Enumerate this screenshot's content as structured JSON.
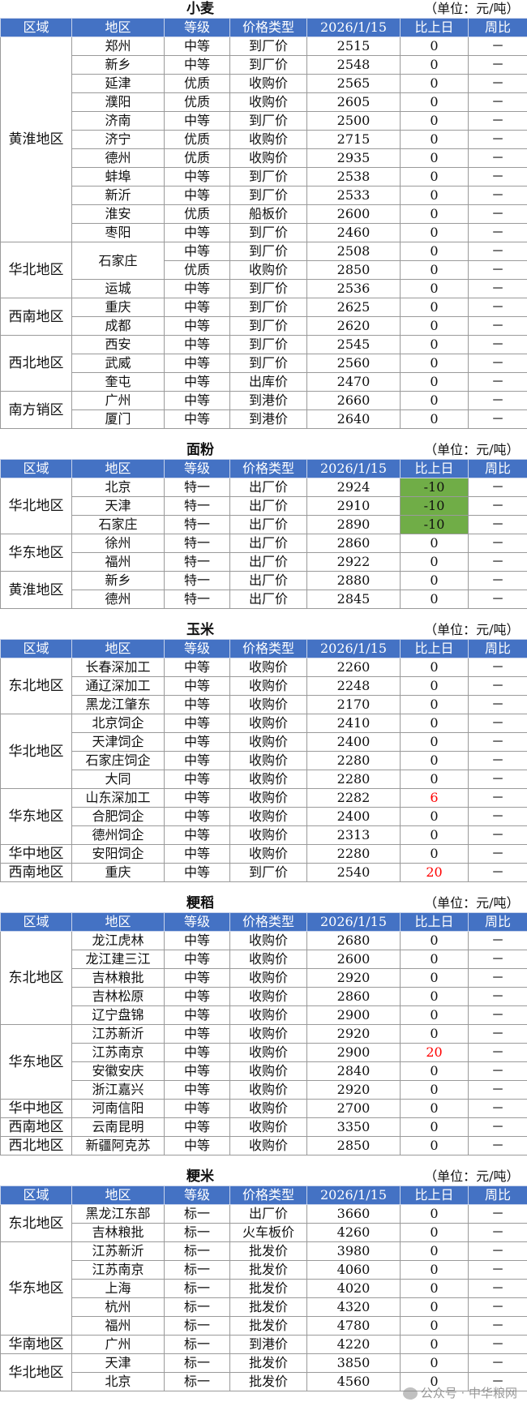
{
  "unit": "（单位：元/吨）",
  "headers": [
    "区域",
    "地区",
    "等级",
    "价格类型",
    "2026/1/15",
    "比上日",
    "周比"
  ],
  "colors": {
    "header_bg": "#4472C4",
    "decrease_bg": "#70AD47",
    "increase_text": "#FF0000"
  },
  "watermark": "公众号 · 中华粮网",
  "sections": [
    {
      "title": "小麦",
      "groups": [
        {
          "region": "黄淮地区",
          "rows": [
            [
              "郑州",
              "中等",
              "到厂价",
              "2515",
              "0",
              "－"
            ],
            [
              "新乡",
              "中等",
              "到厂价",
              "2548",
              "0",
              "－"
            ],
            [
              "延津",
              "优质",
              "收购价",
              "2565",
              "0",
              "－"
            ],
            [
              "濮阳",
              "优质",
              "收购价",
              "2605",
              "0",
              "－"
            ],
            [
              "济南",
              "中等",
              "到厂价",
              "2500",
              "0",
              "－"
            ],
            [
              "济宁",
              "优质",
              "收购价",
              "2715",
              "0",
              "－"
            ],
            [
              "德州",
              "优质",
              "收购价",
              "2935",
              "0",
              "－"
            ],
            [
              "蚌埠",
              "中等",
              "到厂价",
              "2538",
              "0",
              "－"
            ],
            [
              "新沂",
              "中等",
              "到厂价",
              "2533",
              "0",
              "－"
            ],
            [
              "淮安",
              "优质",
              "船板价",
              "2600",
              "0",
              "－"
            ],
            [
              "枣阳",
              "中等",
              "到厂价",
              "2460",
              "0",
              "－"
            ]
          ]
        },
        {
          "region": "华北地区",
          "rows": [
            [
              "石家庄",
              "中等",
              "到厂价",
              "2508",
              "0",
              "－"
            ],
            [
              null,
              "优质",
              "收购价",
              "2850",
              "0",
              "－"
            ],
            [
              "运城",
              "中等",
              "到厂价",
              "2536",
              "0",
              "－"
            ]
          ]
        },
        {
          "region": "西南地区",
          "rows": [
            [
              "重庆",
              "中等",
              "到厂价",
              "2625",
              "0",
              "－"
            ],
            [
              "成都",
              "中等",
              "到厂价",
              "2620",
              "0",
              "－"
            ]
          ]
        },
        {
          "region": "西北地区",
          "rows": [
            [
              "西安",
              "中等",
              "到厂价",
              "2545",
              "0",
              "－"
            ],
            [
              "武威",
              "中等",
              "到厂价",
              "2560",
              "0",
              "－"
            ],
            [
              "奎屯",
              "中等",
              "出库价",
              "2470",
              "0",
              "－"
            ]
          ]
        },
        {
          "region": "南方销区",
          "rows": [
            [
              "广州",
              "中等",
              "到港价",
              "2660",
              "0",
              "－"
            ],
            [
              "厦门",
              "中等",
              "到港价",
              "2640",
              "0",
              "－"
            ]
          ]
        }
      ]
    },
    {
      "title": "面粉",
      "groups": [
        {
          "region": "华北地区",
          "rows": [
            [
              "北京",
              "特一",
              "出厂价",
              "2924",
              "-10",
              "－"
            ],
            [
              "天津",
              "特一",
              "出厂价",
              "2910",
              "-10",
              "－"
            ],
            [
              "石家庄",
              "特一",
              "出厂价",
              "2890",
              "-10",
              "－"
            ]
          ]
        },
        {
          "region": "华东地区",
          "rows": [
            [
              "徐州",
              "特一",
              "出厂价",
              "2860",
              "0",
              "－"
            ],
            [
              "福州",
              "特一",
              "出厂价",
              "2922",
              "0",
              "－"
            ]
          ]
        },
        {
          "region": "黄淮地区",
          "rows": [
            [
              "新乡",
              "特一",
              "出厂价",
              "2880",
              "0",
              "－"
            ],
            [
              "德州",
              "特一",
              "出厂价",
              "2845",
              "0",
              "－"
            ]
          ]
        }
      ]
    },
    {
      "title": "玉米",
      "groups": [
        {
          "region": "东北地区",
          "rows": [
            [
              "长春深加工",
              "中等",
              "收购价",
              "2260",
              "0",
              "－"
            ],
            [
              "通辽深加工",
              "中等",
              "收购价",
              "2248",
              "0",
              "－"
            ],
            [
              "黑龙江肇东",
              "中等",
              "收购价",
              "2170",
              "0",
              "－"
            ]
          ]
        },
        {
          "region": "华北地区",
          "rows": [
            [
              "北京饲企",
              "中等",
              "收购价",
              "2410",
              "0",
              "－"
            ],
            [
              "天津饲企",
              "中等",
              "收购价",
              "2400",
              "0",
              "－"
            ],
            [
              "石家庄饲企",
              "中等",
              "收购价",
              "2280",
              "0",
              "－"
            ],
            [
              "大同",
              "中等",
              "收购价",
              "2280",
              "0",
              "－"
            ]
          ]
        },
        {
          "region": "华东地区",
          "rows": [
            [
              "山东深加工",
              "中等",
              "收购价",
              "2282",
              "6",
              "－"
            ],
            [
              "合肥饲企",
              "中等",
              "收购价",
              "2400",
              "0",
              "－"
            ],
            [
              "德州饲企",
              "中等",
              "收购价",
              "2313",
              "0",
              "－"
            ]
          ]
        },
        {
          "region": "华中地区",
          "rows": [
            [
              "安阳饲企",
              "中等",
              "收购价",
              "2280",
              "0",
              "－"
            ]
          ]
        },
        {
          "region": "西南地区",
          "rows": [
            [
              "重庆",
              "中等",
              "到厂价",
              "2540",
              "20",
              "－"
            ]
          ]
        }
      ]
    },
    {
      "title": "粳稻",
      "groups": [
        {
          "region": "东北地区",
          "rows": [
            [
              "龙江虎林",
              "中等",
              "收购价",
              "2680",
              "0",
              "－"
            ],
            [
              "龙江建三江",
              "中等",
              "收购价",
              "2600",
              "0",
              "－"
            ],
            [
              "吉林粮批",
              "中等",
              "收购价",
              "2920",
              "0",
              "－"
            ],
            [
              "吉林松原",
              "中等",
              "收购价",
              "2860",
              "0",
              "－"
            ],
            [
              "辽宁盘锦",
              "中等",
              "收购价",
              "2900",
              "0",
              "－"
            ]
          ]
        },
        {
          "region": "华东地区",
          "rows": [
            [
              "江苏新沂",
              "中等",
              "收购价",
              "2920",
              "0",
              "－"
            ],
            [
              "江苏南京",
              "中等",
              "收购价",
              "2900",
              "20",
              "－"
            ],
            [
              "安徽安庆",
              "中等",
              "收购价",
              "2840",
              "0",
              "－"
            ],
            [
              "浙江嘉兴",
              "中等",
              "收购价",
              "2920",
              "0",
              "－"
            ]
          ]
        },
        {
          "region": "华中地区",
          "rows": [
            [
              "河南信阳",
              "中等",
              "收购价",
              "2700",
              "0",
              "－"
            ]
          ]
        },
        {
          "region": "西南地区",
          "rows": [
            [
              "云南昆明",
              "中等",
              "收购价",
              "3350",
              "0",
              "－"
            ]
          ]
        },
        {
          "region": "西北地区",
          "rows": [
            [
              "新疆阿克苏",
              "中等",
              "收购价",
              "2850",
              "0",
              "－"
            ]
          ]
        }
      ]
    },
    {
      "title": "粳米",
      "groups": [
        {
          "region": "东北地区",
          "rows": [
            [
              "黑龙江东部",
              "标一",
              "出厂价",
              "3660",
              "0",
              "－"
            ],
            [
              "吉林粮批",
              "标一",
              "火车板价",
              "4260",
              "0",
              "－"
            ]
          ]
        },
        {
          "region": "华东地区",
          "rows": [
            [
              "江苏新沂",
              "标一",
              "批发价",
              "3980",
              "0",
              "－"
            ],
            [
              "江苏南京",
              "标一",
              "批发价",
              "4060",
              "0",
              "－"
            ],
            [
              "上海",
              "标一",
              "批发价",
              "4020",
              "0",
              "－"
            ],
            [
              "杭州",
              "标一",
              "批发价",
              "4320",
              "0",
              "－"
            ],
            [
              "福州",
              "标一",
              "批发价",
              "4780",
              "0",
              "－"
            ]
          ]
        },
        {
          "region": "华南地区",
          "rows": [
            [
              "广州",
              "标一",
              "到港价",
              "4220",
              "0",
              "－"
            ]
          ]
        },
        {
          "region": "华北地区",
          "rows": [
            [
              "天津",
              "标一",
              "批发价",
              "3850",
              "0",
              "－"
            ],
            [
              "北京",
              "标一",
              "批发价",
              "4560",
              "0",
              "－"
            ]
          ]
        }
      ]
    }
  ]
}
